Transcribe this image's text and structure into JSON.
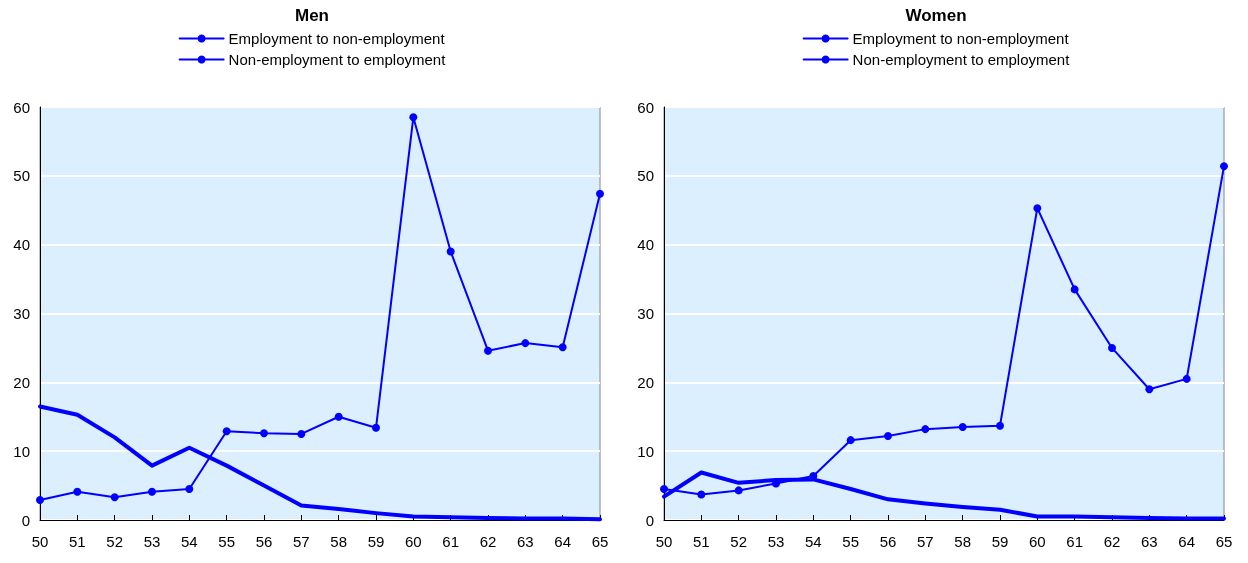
{
  "chart_data": [
    {
      "type": "line",
      "title": "Men",
      "categories": [
        "50",
        "51",
        "52",
        "53",
        "54",
        "55",
        "56",
        "57",
        "58",
        "59",
        "60",
        "61",
        "62",
        "63",
        "64",
        "65"
      ],
      "series": [
        {
          "name": "Employment to non-employment",
          "color": "#0000ff",
          "marker": "circle",
          "values": [
            2.9,
            4.1,
            3.3,
            4.1,
            4.5,
            12.9,
            12.6,
            12.5,
            15,
            13.4,
            58.5,
            39,
            24.6,
            25.7,
            25.1,
            47.4
          ]
        },
        {
          "name": "Non-employment to employment",
          "color": "#0000ff",
          "marker": "none",
          "values": [
            16.5,
            15.3,
            12,
            7.9,
            10.5,
            7.9,
            5,
            2.1,
            1.6,
            1,
            0.5,
            0.4,
            0.3,
            0.2,
            0.2,
            0.1
          ]
        }
      ],
      "ylim": [
        0,
        60
      ],
      "yticks": [
        0,
        10,
        20,
        30,
        40,
        50,
        60
      ],
      "grid": "y",
      "legend": "top",
      "line_style": "solid"
    },
    {
      "type": "line",
      "title": "Women",
      "categories": [
        "50",
        "51",
        "52",
        "53",
        "54",
        "55",
        "56",
        "57",
        "58",
        "59",
        "60",
        "61",
        "62",
        "63",
        "64",
        "65"
      ],
      "series": [
        {
          "name": "Employment to non-employment",
          "color": "#0000ff",
          "marker": "circle",
          "values": [
            4.5,
            3.7,
            4.3,
            5.3,
            6.4,
            11.6,
            12.2,
            13.2,
            13.5,
            13.7,
            45.3,
            33.5,
            25,
            19,
            20.5,
            51.4
          ]
        },
        {
          "name": "Non-employment to employment",
          "color": "#0000ff",
          "marker": "none",
          "values": [
            3.4,
            6.9,
            5.4,
            5.8,
            5.9,
            4.5,
            3,
            2.4,
            1.9,
            1.5,
            0.5,
            0.5,
            0.4,
            0.3,
            0.2,
            0.2
          ]
        }
      ],
      "ylim": [
        0,
        60
      ],
      "yticks": [
        0,
        10,
        20,
        30,
        40,
        50,
        60
      ],
      "grid": "y",
      "legend": "top",
      "line_style": "solid"
    }
  ]
}
